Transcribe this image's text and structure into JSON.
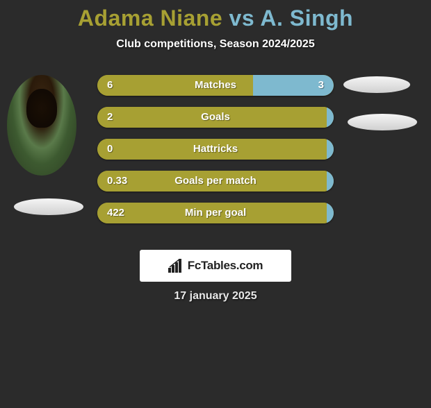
{
  "colors": {
    "background": "#2b2b2b",
    "accent_p1": "#a7a033",
    "accent_p2": "#7eb9cf",
    "title_shadow": "#000000",
    "subtitle_text": "#ffffff",
    "ellipse_white": "#f5f5f5",
    "ellipse_shadow": "#d0d0d0",
    "brand_bg": "#ffffff",
    "brand_text": "#222222",
    "date_text": "#e8e8e8"
  },
  "title": {
    "player1": "Adama Niane",
    "vs": "vs",
    "player2": "A. Singh",
    "fontsize": 32
  },
  "subtitle": "Club competitions, Season 2024/2025",
  "rows": [
    {
      "label": "Matches",
      "left": "6",
      "right": "3",
      "left_pct": 66,
      "right_pct": 34,
      "show_right": true
    },
    {
      "label": "Goals",
      "left": "2",
      "right": "",
      "left_pct": 97,
      "right_pct": 3,
      "show_right": false
    },
    {
      "label": "Hattricks",
      "left": "0",
      "right": "",
      "left_pct": 97,
      "right_pct": 3,
      "show_right": false
    },
    {
      "label": "Goals per match",
      "left": "0.33",
      "right": "",
      "left_pct": 97,
      "right_pct": 3,
      "show_right": false
    },
    {
      "label": "Min per goal",
      "left": "422",
      "right": "",
      "left_pct": 97,
      "right_pct": 3,
      "show_right": false
    }
  ],
  "row_style": {
    "height": 30,
    "gap": 16,
    "radius": 16,
    "label_fontsize": 15,
    "value_fontsize": 15
  },
  "brand": {
    "text": "FcTables.com"
  },
  "date": "17 january 2025"
}
